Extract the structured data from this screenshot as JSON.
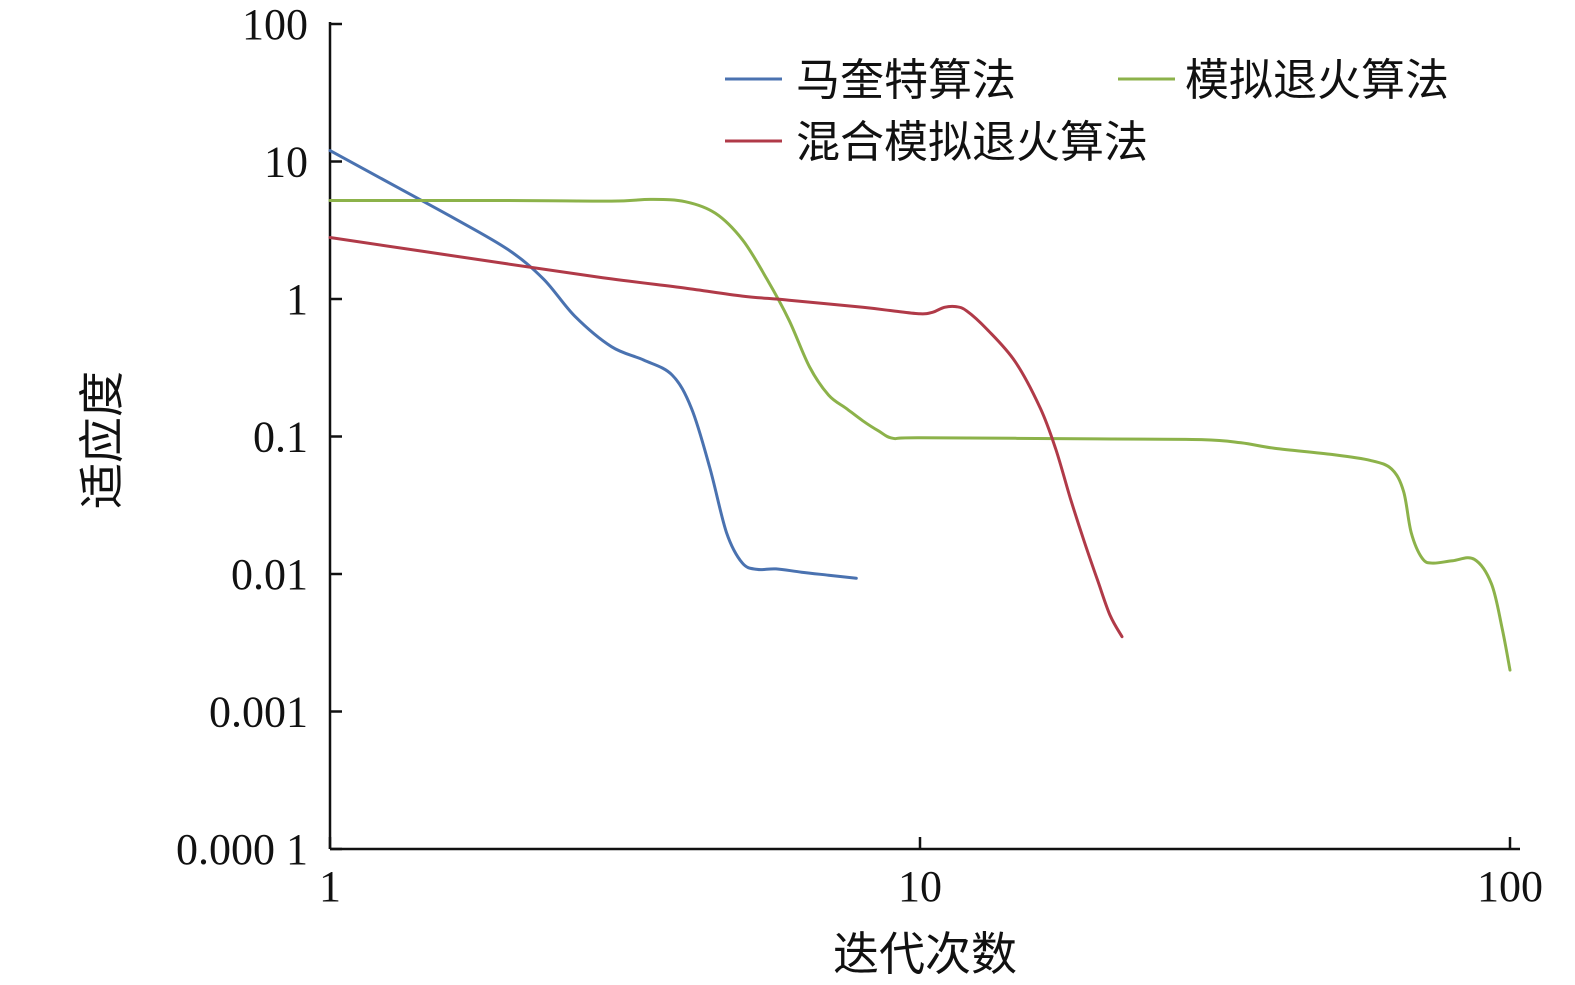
{
  "chart_data": {
    "type": "line",
    "xlabel": "迭代次数",
    "ylabel": "适应度",
    "x_scale": "log",
    "y_scale": "log",
    "xlim": [
      1,
      100
    ],
    "ylim": [
      0.0001,
      100
    ],
    "x_ticks": [
      {
        "value": 1,
        "label": "1"
      },
      {
        "value": 10,
        "label": "10"
      },
      {
        "value": 100,
        "label": "100"
      }
    ],
    "y_ticks": [
      {
        "value": 100,
        "label": "100"
      },
      {
        "value": 10,
        "label": "10"
      },
      {
        "value": 1,
        "label": "1"
      },
      {
        "value": 0.1,
        "label": "0.1"
      },
      {
        "value": 0.01,
        "label": "0.01"
      },
      {
        "value": 0.001,
        "label": "0.001"
      },
      {
        "value": 0.0001,
        "label": "0.000 1"
      }
    ],
    "grid": false,
    "legend_position": "top-right",
    "series": [
      {
        "name": "马奎特算法",
        "color": "#4a72b0",
        "points": [
          [
            1,
            12
          ],
          [
            1.3,
            6.5
          ],
          [
            1.6,
            4
          ],
          [
            2,
            2.3
          ],
          [
            2.3,
            1.4
          ],
          [
            2.6,
            0.75
          ],
          [
            3,
            0.45
          ],
          [
            3.4,
            0.36
          ],
          [
            3.8,
            0.28
          ],
          [
            4.1,
            0.16
          ],
          [
            4.4,
            0.06
          ],
          [
            4.7,
            0.02
          ],
          [
            5,
            0.012
          ],
          [
            5.3,
            0.0108
          ],
          [
            5.7,
            0.0109
          ],
          [
            6.3,
            0.0103
          ],
          [
            7,
            0.0098
          ],
          [
            7.8,
            0.0093
          ]
        ]
      },
      {
        "name": "模拟退火算法",
        "color": "#8cb24a",
        "points": [
          [
            1,
            5.2
          ],
          [
            2,
            5.2
          ],
          [
            3,
            5.15
          ],
          [
            3.5,
            5.3
          ],
          [
            4,
            5.1
          ],
          [
            4.5,
            4.2
          ],
          [
            5,
            2.7
          ],
          [
            5.5,
            1.4
          ],
          [
            6,
            0.7
          ],
          [
            6.5,
            0.32
          ],
          [
            7,
            0.2
          ],
          [
            7.5,
            0.16
          ],
          [
            8,
            0.13
          ],
          [
            8.5,
            0.11
          ],
          [
            9,
            0.097
          ],
          [
            10,
            0.098
          ],
          [
            20,
            0.096
          ],
          [
            30,
            0.095
          ],
          [
            35,
            0.09
          ],
          [
            40,
            0.082
          ],
          [
            50,
            0.074
          ],
          [
            58,
            0.067
          ],
          [
            63,
            0.058
          ],
          [
            66,
            0.04
          ],
          [
            68,
            0.02
          ],
          [
            71,
            0.013
          ],
          [
            74,
            0.012
          ],
          [
            80,
            0.0125
          ],
          [
            87,
            0.0128
          ],
          [
            93,
            0.0085
          ],
          [
            97,
            0.004
          ],
          [
            100,
            0.002
          ]
        ]
      },
      {
        "name": "混合模拟退火算法",
        "color": "#b03a48",
        "points": [
          [
            1,
            2.8
          ],
          [
            2,
            1.8
          ],
          [
            3,
            1.4
          ],
          [
            4,
            1.2
          ],
          [
            5,
            1.05
          ],
          [
            6,
            0.98
          ],
          [
            8,
            0.87
          ],
          [
            9,
            0.82
          ],
          [
            10,
            0.78
          ],
          [
            10.5,
            0.8
          ],
          [
            11,
            0.87
          ],
          [
            11.5,
            0.88
          ],
          [
            12,
            0.82
          ],
          [
            13,
            0.6
          ],
          [
            14.5,
            0.35
          ],
          [
            16,
            0.16
          ],
          [
            17,
            0.08
          ],
          [
            18,
            0.035
          ],
          [
            19,
            0.017
          ],
          [
            20,
            0.009
          ],
          [
            21,
            0.005
          ],
          [
            22,
            0.0035
          ]
        ]
      }
    ]
  }
}
